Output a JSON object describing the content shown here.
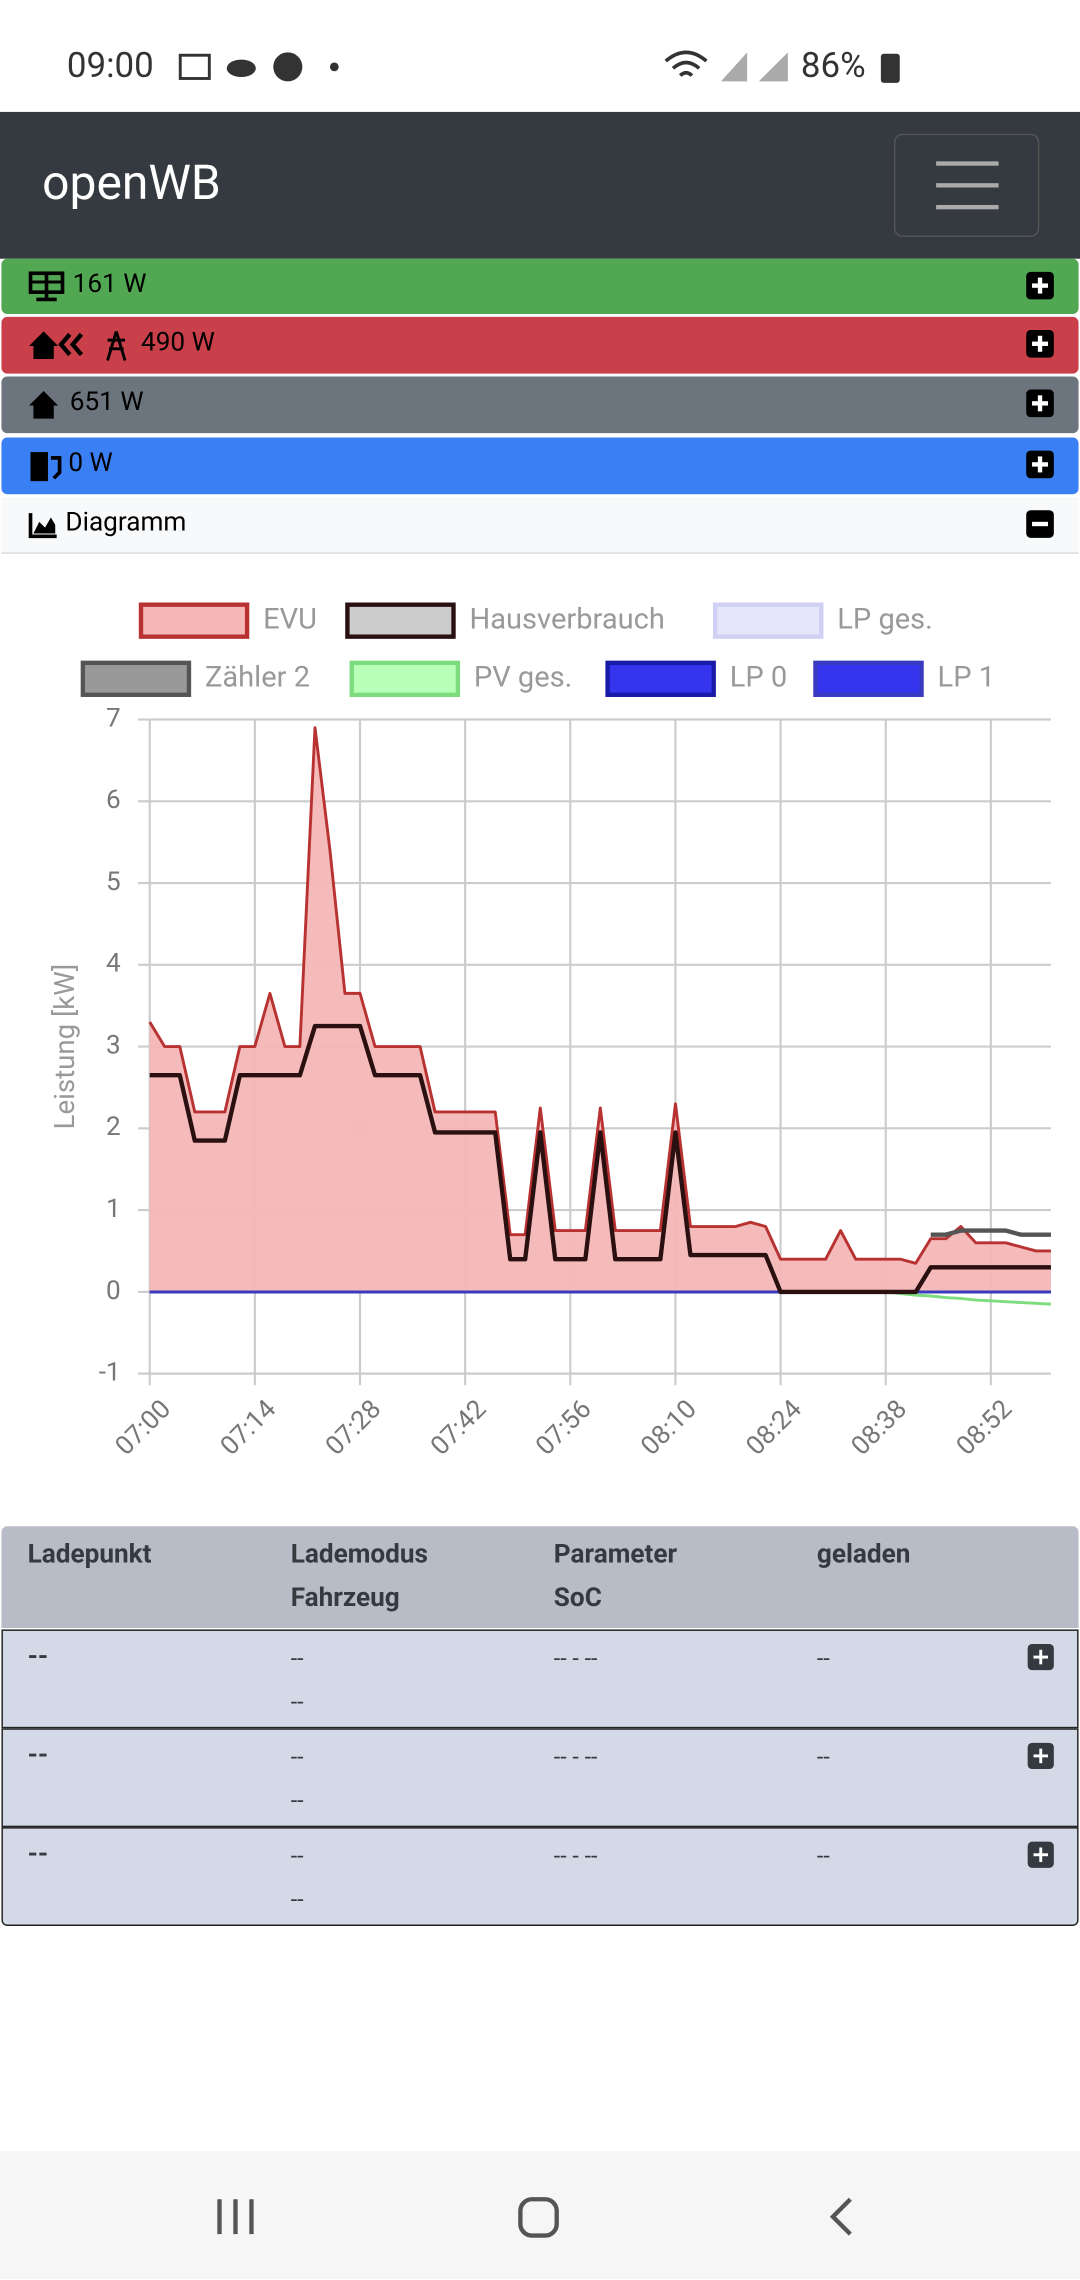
{
  "status_bar": {
    "time": "09:00",
    "battery": "86%"
  },
  "navbar": {
    "brand": "openWB"
  },
  "summary": [
    "161 W",
    "490 W",
    "651 W",
    "0 W"
  ],
  "diagram_header": "Diagramm",
  "chart_data": {
    "type": "line",
    "ylabel": "Leistung [kW]",
    "x": [
      "07:00",
      "07:02",
      "07:04",
      "07:06",
      "07:08",
      "07:10",
      "07:12",
      "07:14",
      "07:16",
      "07:18",
      "07:20",
      "07:22",
      "07:24",
      "07:26",
      "07:28",
      "07:30",
      "07:32",
      "07:34",
      "07:36",
      "07:38",
      "07:40",
      "07:42",
      "07:44",
      "07:46",
      "07:48",
      "07:50",
      "07:52",
      "07:54",
      "07:56",
      "07:58",
      "08:00",
      "08:02",
      "08:04",
      "08:06",
      "08:08",
      "08:10",
      "08:12",
      "08:14",
      "08:16",
      "08:18",
      "08:20",
      "08:22",
      "08:24",
      "08:26",
      "08:28",
      "08:30",
      "08:32",
      "08:34",
      "08:36",
      "08:38",
      "08:40",
      "08:42",
      "08:44",
      "08:46",
      "08:48",
      "08:50",
      "08:52",
      "08:54",
      "08:56",
      "08:58",
      "09:00"
    ],
    "xlim": [
      "07:00",
      "09:00"
    ],
    "xticks": [
      "07:00",
      "07:14",
      "07:28",
      "07:42",
      "07:56",
      "08:10",
      "08:24",
      "08:38",
      "08:52"
    ],
    "ylim": [
      -1,
      7
    ],
    "yticks": [
      -1,
      0,
      1,
      2,
      3,
      4,
      5,
      6,
      7
    ],
    "grid": true,
    "series": [
      {
        "name": "EVU",
        "color": "#b83232",
        "fill_color": "#f4b6b6",
        "area": true,
        "values": [
          3.3,
          3.0,
          3.0,
          2.2,
          2.2,
          2.2,
          3.0,
          3.0,
          3.65,
          3.0,
          3.0,
          6.9,
          5.4,
          3.65,
          3.65,
          3.0,
          3.0,
          3.0,
          3.0,
          2.2,
          2.2,
          2.2,
          2.2,
          2.2,
          0.7,
          0.7,
          2.25,
          0.75,
          0.75,
          0.75,
          2.25,
          0.75,
          0.75,
          0.75,
          0.75,
          2.3,
          0.8,
          0.8,
          0.8,
          0.8,
          0.85,
          0.8,
          0.4,
          0.4,
          0.4,
          0.4,
          0.75,
          0.4,
          0.4,
          0.4,
          0.4,
          0.35,
          0.65,
          0.65,
          0.8,
          0.6,
          0.6,
          0.6,
          0.55,
          0.5,
          0.5
        ]
      },
      {
        "name": "Hausverbrauch",
        "color": "#2a1010",
        "fill_color": "#cccccc",
        "values": [
          2.65,
          2.65,
          2.65,
          1.85,
          1.85,
          1.85,
          2.65,
          2.65,
          2.65,
          2.65,
          2.65,
          3.25,
          3.25,
          3.25,
          3.25,
          2.65,
          2.65,
          2.65,
          2.65,
          1.95,
          1.95,
          1.95,
          1.95,
          1.95,
          0.4,
          0.4,
          1.95,
          0.4,
          0.4,
          0.4,
          1.95,
          0.4,
          0.4,
          0.4,
          0.4,
          1.95,
          0.45,
          0.45,
          0.45,
          0.45,
          0.45,
          0.45,
          0,
          0,
          0,
          0,
          0,
          0,
          0,
          0,
          0,
          0,
          0.3,
          0.3,
          0.3,
          0.3,
          0.3,
          0.3,
          0.3,
          0.3,
          0.3
        ]
      },
      {
        "name": "LP ges.",
        "color": "#d0d0f4",
        "fill_color": "#e6e6fa",
        "values": [
          0,
          0,
          0,
          0,
          0,
          0,
          0,
          0,
          0,
          0,
          0,
          0,
          0,
          0,
          0,
          0,
          0,
          0,
          0,
          0,
          0,
          0,
          0,
          0,
          0,
          0,
          0,
          0,
          0,
          0,
          0,
          0,
          0,
          0,
          0,
          0,
          0,
          0,
          0,
          0,
          0,
          0,
          0,
          0,
          0,
          0,
          0,
          0,
          0,
          0,
          0,
          0,
          0,
          0,
          0,
          0,
          0,
          0,
          0,
          0,
          0
        ]
      },
      {
        "name": "Zähler 2",
        "color": "#555555",
        "fill_color": "#999999",
        "values": [
          null,
          null,
          null,
          null,
          null,
          null,
          null,
          null,
          null,
          null,
          null,
          null,
          null,
          null,
          null,
          null,
          null,
          null,
          null,
          null,
          null,
          null,
          null,
          null,
          null,
          null,
          null,
          null,
          null,
          null,
          null,
          null,
          null,
          null,
          null,
          null,
          null,
          null,
          null,
          null,
          null,
          null,
          null,
          null,
          null,
          null,
          null,
          null,
          null,
          null,
          null,
          null,
          0.7,
          0.7,
          0.75,
          0.75,
          0.75,
          0.75,
          0.7,
          0.7,
          0.7
        ]
      },
      {
        "name": "PV ges.",
        "color": "#7ddc7d",
        "fill_color": "#b8ffb8",
        "values": [
          0,
          0,
          0,
          0,
          0,
          0,
          0,
          0,
          0,
          0,
          0,
          0,
          0,
          0,
          0,
          0,
          0,
          0,
          0,
          0,
          0,
          0,
          0,
          0,
          0,
          0,
          0,
          0,
          0,
          0,
          0,
          0,
          0,
          0,
          0,
          0,
          0,
          0,
          0,
          0,
          0,
          0,
          0,
          0,
          0,
          0,
          0,
          0,
          0,
          0,
          -0.02,
          -0.04,
          -0.05,
          -0.07,
          -0.08,
          -0.1,
          -0.11,
          -0.12,
          -0.13,
          -0.14,
          -0.15
        ]
      },
      {
        "name": "LP 0",
        "color": "#1a1aa8",
        "fill_color": "#3535ee",
        "values": [
          0,
          0,
          0,
          0,
          0,
          0,
          0,
          0,
          0,
          0,
          0,
          0,
          0,
          0,
          0,
          0,
          0,
          0,
          0,
          0,
          0,
          0,
          0,
          0,
          0,
          0,
          0,
          0,
          0,
          0,
          0,
          0,
          0,
          0,
          0,
          0,
          0,
          0,
          0,
          0,
          0,
          0,
          0,
          0,
          0,
          0,
          0,
          0,
          0,
          0,
          0,
          0,
          0,
          0,
          0,
          0,
          0,
          0,
          0,
          0,
          0
        ]
      },
      {
        "name": "LP 1",
        "color": "#3a3ac0",
        "fill_color": "#3535ee",
        "values": [
          0,
          0,
          0,
          0,
          0,
          0,
          0,
          0,
          0,
          0,
          0,
          0,
          0,
          0,
          0,
          0,
          0,
          0,
          0,
          0,
          0,
          0,
          0,
          0,
          0,
          0,
          0,
          0,
          0,
          0,
          0,
          0,
          0,
          0,
          0,
          0,
          0,
          0,
          0,
          0,
          0,
          0,
          0,
          0,
          0,
          0,
          0,
          0,
          0,
          0,
          0,
          0,
          0,
          0,
          0,
          0,
          0,
          0,
          0,
          0,
          0
        ]
      }
    ]
  },
  "table": {
    "headers": [
      [
        "Ladepunkt"
      ],
      [
        "Lademodus",
        "Fahrzeug"
      ],
      [
        "Parameter",
        "SoC"
      ],
      [
        "geladen"
      ]
    ],
    "rows": [
      {
        "ladepunkt": "--",
        "lademodus": "--",
        "fahrzeug": "--",
        "parameter": "-- - --",
        "geladen": "--"
      },
      {
        "ladepunkt": "--",
        "lademodus": "--",
        "fahrzeug": "--",
        "parameter": "-- - --",
        "geladen": "--"
      },
      {
        "ladepunkt": "--",
        "lademodus": "--",
        "fahrzeug": "--",
        "parameter": "-- - --",
        "geladen": "--"
      }
    ]
  }
}
